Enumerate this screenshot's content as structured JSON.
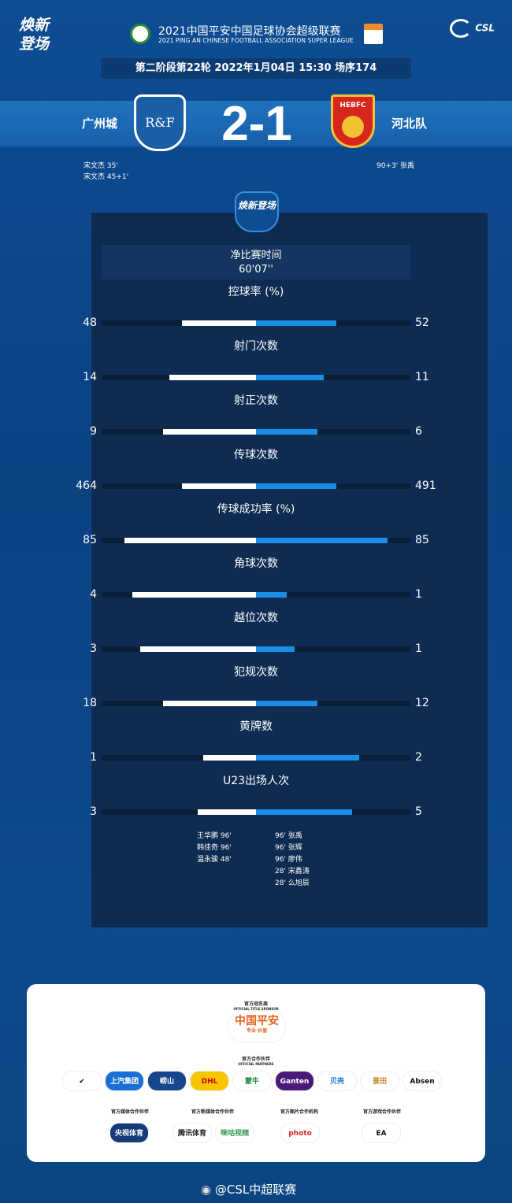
{
  "brand": "焕新登场",
  "league": {
    "title_cn": "2021中国平安中国足球协会超级联赛",
    "title_en": "2021 PING AN CHINESE FOOTBALL ASSOCIATION SUPER LEAGUE",
    "logo": "CSL"
  },
  "match_info": "第二阶段第22轮  2022年1月04日 15:30 场序174",
  "home": {
    "name": "广州城",
    "crest": "R&F",
    "score": "2",
    "scorers": [
      "宋文杰  35'",
      "宋文杰  45+1'"
    ]
  },
  "away": {
    "name": "河北队",
    "crest": "HEBFC",
    "score": "1",
    "scorers": [
      "90+3'  张禹"
    ]
  },
  "score_sep": "2-1",
  "panel_logo": "焕新登场",
  "net_time": {
    "label": "净比赛时间",
    "value": "60'07''"
  },
  "stats": [
    {
      "label": "控球率 (%)",
      "home": "48",
      "away": "52",
      "home_fill": 0.48,
      "away_fill": 0.52
    },
    {
      "label": "射门次数",
      "home": "14",
      "away": "11",
      "home_fill": 0.56,
      "away_fill": 0.44
    },
    {
      "label": "射正次数",
      "home": "9",
      "away": "6",
      "home_fill": 0.6,
      "away_fill": 0.4
    },
    {
      "label": "传球次数",
      "home": "464",
      "away": "491",
      "home_fill": 0.48,
      "away_fill": 0.52
    },
    {
      "label": "传球成功率 (%)",
      "home": "85",
      "away": "85",
      "home_fill": 0.85,
      "away_fill": 0.85
    },
    {
      "label": "角球次数",
      "home": "4",
      "away": "1",
      "home_fill": 0.8,
      "away_fill": 0.2
    },
    {
      "label": "越位次数",
      "home": "3",
      "away": "1",
      "home_fill": 0.75,
      "away_fill": 0.25
    },
    {
      "label": "犯规次数",
      "home": "18",
      "away": "12",
      "home_fill": 0.6,
      "away_fill": 0.4
    },
    {
      "label": "黄牌数",
      "home": "1",
      "away": "2",
      "home_fill": 0.34,
      "away_fill": 0.67
    },
    {
      "label": "U23出场人次",
      "home": "3",
      "away": "5",
      "home_fill": 0.38,
      "away_fill": 0.62
    }
  ],
  "u23_home": [
    "王华鹏   96'",
    "韩佳奇   96'",
    "温永骏   48'"
  ],
  "u23_away": [
    "96'   张禹",
    "96'   张辉",
    "96'   廖伟",
    "28'   宋鑫涛",
    "28'   么旭辰"
  ],
  "sponsors": {
    "title_sponsor_label": "官方冠名商",
    "title_sponsor_en": "OFFICIAL TITLE SPONSOR",
    "title_sponsor": "中国平安",
    "title_sponsor_sub": "专业·价值",
    "partners_label": "官方合作伙伴",
    "partners_en": "OFFICIAL PARTNERS",
    "partners": [
      "✔",
      "上汽集团",
      "崂山",
      "DHL",
      "蒙牛",
      "Ganten",
      "贝壳",
      "景田",
      "Absen"
    ],
    "media_label": "官方媒体合作伙伴",
    "media": [
      "央视体育"
    ],
    "newmedia_label": "官方新媒体合作伙伴",
    "newmedia": [
      "腾讯体育",
      "咪咕视频"
    ],
    "photo_label": "官方图片合作机构",
    "photo": [
      "photo"
    ],
    "game_label": "官方游戏合作伙伴",
    "game": [
      "EA"
    ]
  },
  "weibo": "@CSL中超联赛"
}
